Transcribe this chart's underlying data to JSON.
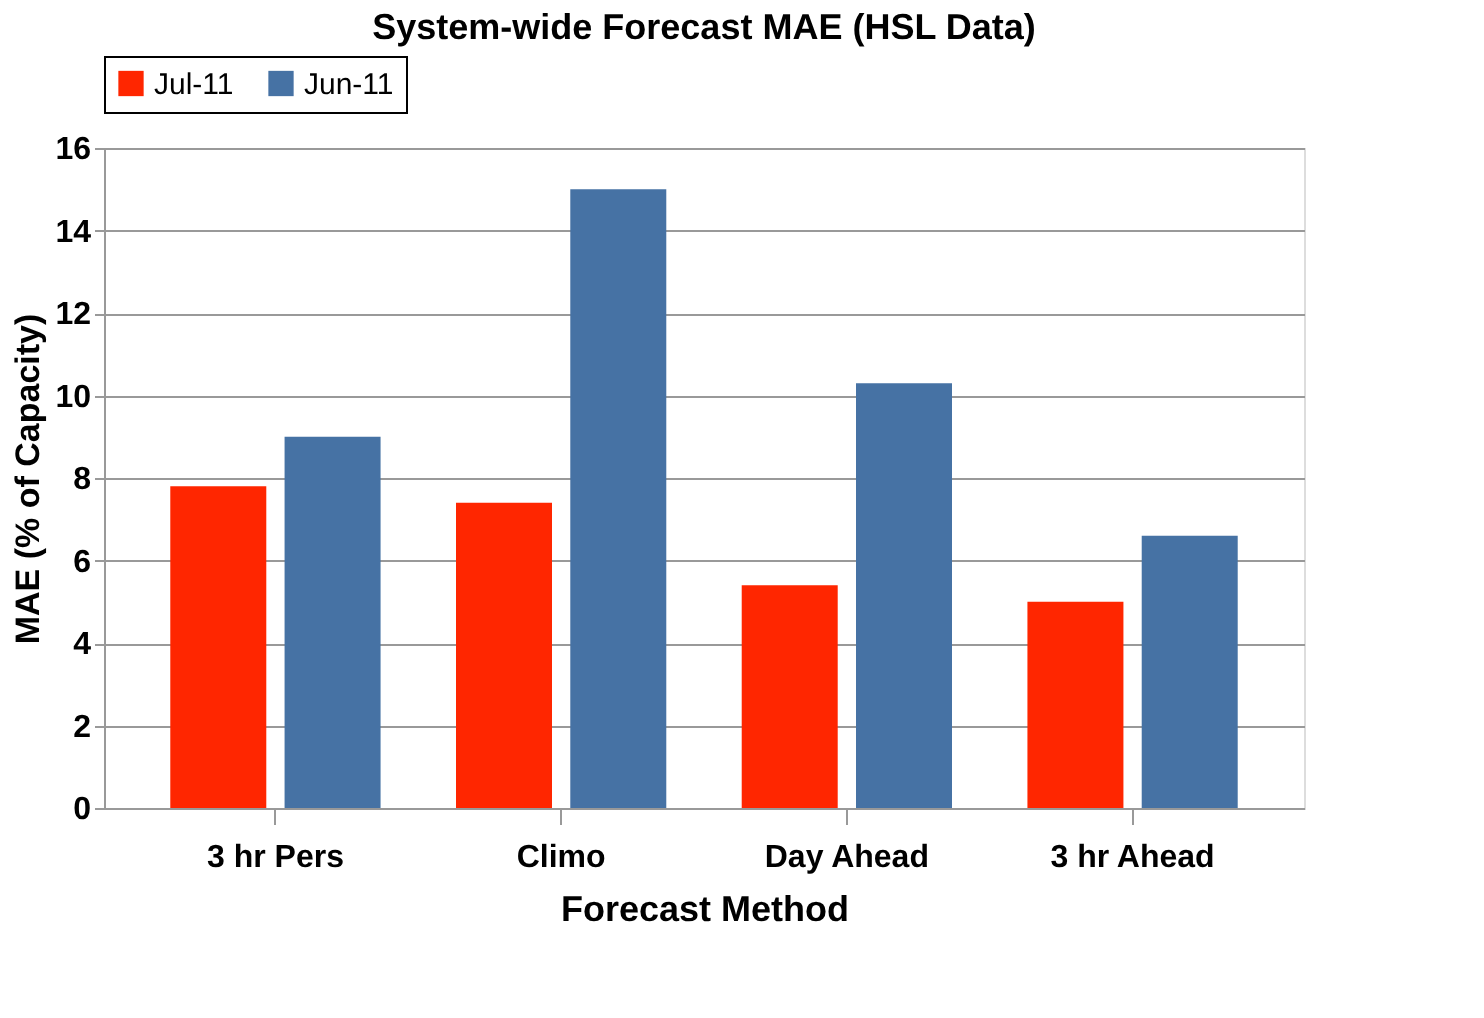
{
  "chart_data": {
    "type": "bar",
    "title": "System-wide Forecast MAE (HSL Data)",
    "xlabel": "Forecast Method",
    "ylabel": "MAE (% of Capacity)",
    "categories": [
      "3 hr Pers",
      "Climo",
      "Day Ahead",
      "3 hr Ahead"
    ],
    "series": [
      {
        "name": "Jul-11",
        "color": "#ff2600",
        "values": [
          7.8,
          7.4,
          5.4,
          5.0
        ]
      },
      {
        "name": "Jun-11",
        "color": "#4672a4",
        "values": [
          9.0,
          15.0,
          10.3,
          6.6
        ]
      }
    ],
    "ylim": [
      0,
      16
    ],
    "yticks": [
      0,
      2,
      4,
      6,
      8,
      10,
      12,
      14,
      16
    ],
    "grid": "y",
    "legend": "top"
  }
}
